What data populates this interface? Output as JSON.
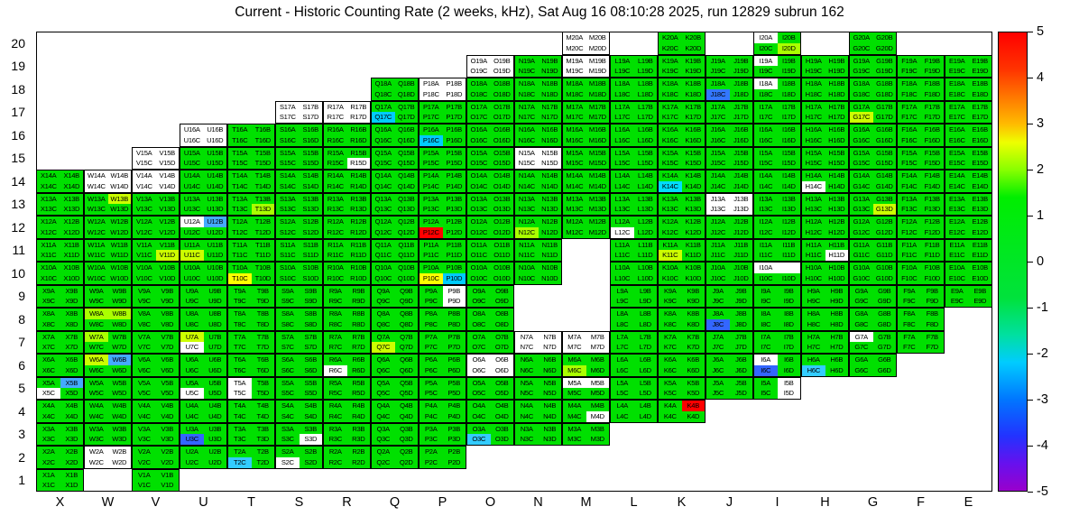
{
  "title": "Current - Historic Counting Rate (2 weeks, kHz), Sat Aug 16 08:10:28 2025, run 12829 subrun 162",
  "x_axis": {
    "labels": [
      "X",
      "W",
      "V",
      "U",
      "T",
      "S",
      "R",
      "Q",
      "P",
      "O",
      "N",
      "M",
      "L",
      "K",
      "J",
      "I",
      "H",
      "G",
      "F",
      "E"
    ]
  },
  "y_axis": {
    "labels": [
      "20",
      "19",
      "18",
      "17",
      "16",
      "15",
      "14",
      "13",
      "12",
      "11",
      "10",
      "9",
      "8",
      "7",
      "6",
      "5",
      "4",
      "3",
      "2",
      "1"
    ]
  },
  "colorbar": {
    "tick_labels": [
      "5",
      "4",
      "3",
      "2",
      "1",
      "0",
      "-1",
      "-2",
      "-3",
      "-4",
      "-5"
    ],
    "gradient": [
      [
        "0%",
        "#ff0000"
      ],
      [
        "8%",
        "#ff3300"
      ],
      [
        "14%",
        "#ff7700"
      ],
      [
        "20%",
        "#ffbb00"
      ],
      [
        "24%",
        "#eeff00"
      ],
      [
        "30%",
        "#88ff00"
      ],
      [
        "36%",
        "#00ee00"
      ],
      [
        "58%",
        "#00e23c"
      ],
      [
        "66%",
        "#00e0a0"
      ],
      [
        "72%",
        "#00ccff"
      ],
      [
        "80%",
        "#0077ff"
      ],
      [
        "88%",
        "#2233ff"
      ],
      [
        "94%",
        "#6611ee"
      ],
      [
        "100%",
        "#9900cc"
      ]
    ]
  },
  "grid_style": {
    "default_color": "#00e000",
    "no_data_color": "#ffffff",
    "grid_line_color": "#000000",
    "colored_cells": {
      "I20D": "#aaff00",
      "J18C": "#3377ff",
      "Q17C": "#00ccff",
      "G17C": "#ccff00",
      "P16C": "#00ccff",
      "K14C": "#00ddff",
      "W13B": "#ccff00",
      "T13D": "#aaff00",
      "G13D": "#ccff00",
      "U12B": "#44aaff",
      "P12C": "#ff0000",
      "N12C": "#aaff00",
      "V11D": "#ccff00",
      "U11C": "#ccff00",
      "K11C": "#ccff00",
      "T10C": "#ffff00",
      "P10C": "#ffff00",
      "P10D": "#00ccff",
      "W8A": "#aaff00",
      "W8B": "#aaff00",
      "J8C": "#3366ff",
      "W7A": "#aaff00",
      "U7A": "#ccff00",
      "Q7C": "#ccff00",
      "W6A": "#ccff00",
      "W6B": "#44aaff",
      "M6C": "#aaff00",
      "I6C": "#3366ff",
      "H6C": "#33ccff",
      "X5B": "#44aaff",
      "K4B": "#ff0000",
      "U3C": "#3366ff",
      "O3C": "#33ccff",
      "T2C": "#33ccff"
    }
  },
  "chart_data": {
    "type": "heatmap",
    "title": "Current - Historic Counting Rate (2 weeks, kHz), Sat Aug 16 08:10:28 2025, run 12829 subrun 162",
    "x_categories": [
      "X",
      "W",
      "V",
      "U",
      "T",
      "S",
      "R",
      "Q",
      "P",
      "O",
      "N",
      "M",
      "L",
      "K",
      "J",
      "I",
      "H",
      "G",
      "F",
      "E"
    ],
    "y_categories": [
      20,
      19,
      18,
      17,
      16,
      15,
      14,
      13,
      12,
      11,
      10,
      9,
      8,
      7,
      6,
      5,
      4,
      3,
      2,
      1
    ],
    "quadrants": [
      "A",
      "B",
      "C",
      "D"
    ],
    "zlim": [
      -5,
      5
    ],
    "colorbar_ticks": [
      5,
      4,
      3,
      2,
      1,
      0,
      -1,
      -2,
      -3,
      -4,
      -5
    ],
    "legend_position": "right",
    "default_value": 0.5,
    "row_ranges": [
      {
        "row": 20,
        "cols": [
          "M",
          "K",
          "I",
          "G"
        ]
      },
      {
        "row": 19,
        "from": "O",
        "to": "E"
      },
      {
        "row": 18,
        "from": "Q",
        "to": "E"
      },
      {
        "row": 17,
        "from": "S",
        "to": "E"
      },
      {
        "row": 16,
        "from": "U",
        "to": "E"
      },
      {
        "row": 15,
        "from": "V",
        "to": "E"
      },
      {
        "row": 14,
        "from": "X",
        "to": "E"
      },
      {
        "row": 13,
        "from": "X",
        "to": "E"
      },
      {
        "row": 12,
        "from": "X",
        "to": "E"
      },
      {
        "row": 11,
        "from": "X",
        "to": "E"
      },
      {
        "row": 10,
        "from": "X",
        "to": "E"
      },
      {
        "row": 9,
        "from": "X",
        "to": "E"
      },
      {
        "row": 8,
        "from": "X",
        "to": "F"
      },
      {
        "row": 7,
        "from": "X",
        "to": "F"
      },
      {
        "row": 6,
        "from": "X",
        "to": "G"
      },
      {
        "row": 5,
        "from": "X",
        "to": "I"
      },
      {
        "row": 4,
        "from": "X",
        "to": "K"
      },
      {
        "row": 3,
        "from": "X",
        "to": "M"
      },
      {
        "row": 2,
        "from": "X",
        "to": "P"
      },
      {
        "row": 1,
        "cols": [
          "X",
          "V"
        ]
      }
    ],
    "absent_cells": [
      "M11",
      "M10",
      "N9",
      "M9",
      "N8",
      "M8",
      "I10B"
    ],
    "no_data_cells": [
      "M20A",
      "M20B",
      "M20C",
      "M20D",
      "I20A",
      "O19A",
      "O19B",
      "O19C",
      "O19D",
      "M19A",
      "M19B",
      "M19C",
      "M19D",
      "I19A",
      "P18A",
      "P18B",
      "P18C",
      "P18D",
      "I18A",
      "S17A",
      "S17B",
      "S17C",
      "S17D",
      "R17A",
      "R17B",
      "R17C",
      "R17D",
      "U16A",
      "U16B",
      "U16C",
      "U16D",
      "V15A",
      "V15B",
      "V15C",
      "V15D",
      "N15A",
      "N15B",
      "N15C",
      "N15D",
      "R15D",
      "W14A",
      "W14B",
      "W14C",
      "W14D",
      "V14A",
      "V14B",
      "V14C",
      "V14D",
      "H14C",
      "J13A",
      "J13B",
      "J13C",
      "J13D",
      "U12A",
      "L12C",
      "H11D",
      "I10A",
      "P9B",
      "P9D",
      "N7A",
      "N7B",
      "N7C",
      "N7D",
      "M7A",
      "M7B",
      "M7C",
      "M7D",
      "U7C",
      "G7A",
      "O6A",
      "O6B",
      "O6C",
      "O6D",
      "R6C",
      "I6A",
      "M5A",
      "M5B",
      "X5C",
      "T5A",
      "T5C",
      "U5C",
      "I5B",
      "I5D",
      "M4D",
      "S3D",
      "W2A",
      "W2B",
      "W2C",
      "W2D",
      "S2C"
    ],
    "value_overrides": {
      "I20D": 2,
      "J18C": -3,
      "Q17C": -2,
      "G17C": 2.5,
      "P16C": -2,
      "K14C": -2,
      "W13B": 2.5,
      "T13D": 2,
      "G13D": 2.5,
      "U12B": -2.5,
      "P12C": 5,
      "N12C": 2,
      "V11D": 2.5,
      "U11C": 2.5,
      "K11C": 2.5,
      "T10C": 3,
      "P10C": 3,
      "P10D": -2,
      "W8A": 2,
      "W8B": 2,
      "J8C": -3,
      "W7A": 2,
      "U7A": 2.5,
      "Q7C": 2.5,
      "W6A": 2.5,
      "W6B": -2.5,
      "M6C": 2,
      "I6C": -3,
      "H6C": -2,
      "X5B": -2.5,
      "K4B": 5,
      "U3C": -3,
      "O3C": -2,
      "T2C": -2
    }
  }
}
